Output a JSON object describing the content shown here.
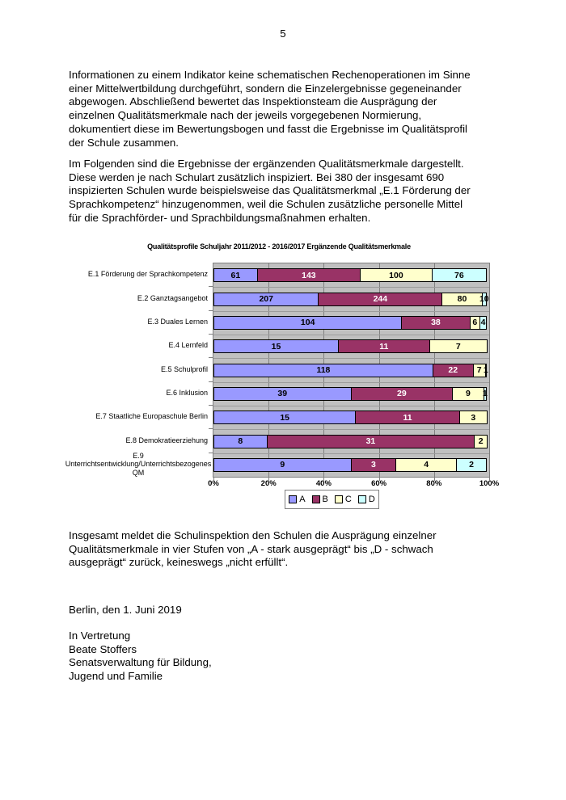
{
  "page": {
    "number": "5"
  },
  "paragraphs": {
    "p1": "Informationen zu einem Indikator keine schematischen Rechenoperationen im Sinne\neiner Mittelwertbildung durchgeführt, sondern die Einzelergebnisse gegeneinander\nabgewogen. Abschließend bewertet das Inspektionsteam die Ausprägung der\neinzelnen Qualitätsmerkmale nach der jeweils vorgegebenen Normierung,\ndokumentiert diese im Bewertungsbogen und fasst die Ergebnisse im Qualitätsprofil\nder Schule zusammen.",
    "p2": "Im Folgenden sind die Ergebnisse der ergänzenden Qualitätsmerkmale dargestellt.\nDiese werden je nach Schulart zusätzlich inspiziert. Bei 380 der insgesamt 690\ninspizierten Schulen wurde beispielsweise das Qualitätsmerkmal „E.1 Förderung der\nSprachkompetenz“ hinzugenommen, weil die Schulen zusätzliche personelle Mittel\nfür die Sprachförder- und Sprachbildungsmaßnahmen erhalten.",
    "p3": "Insgesamt meldet die Schulinspektion den Schulen die Ausprägung einzelner\nQualitätsmerkmale in vier Stufen von „A - stark ausgeprägt“ bis „D - schwach\nausgeprägt“ zurück, keineswegs „nicht erfüllt“.",
    "date_line": "Berlin, den 1. Juni 2019",
    "signature": "In Vertretung\nBeate Stoffers\nSenatsverwaltung für Bildung,\nJugend und Familie"
  },
  "chart_data": {
    "type": "bar",
    "stacked": true,
    "orientation": "horizontal",
    "percent_stacked": true,
    "title": "Qualitätsprofile Schuljahr 2011/2012 - 2016/2017 Ergänzende Qualitätsmerkmale",
    "categories": [
      "E.1 Förderung der Sprachkompetenz",
      "E.2 Ganztagsangebot",
      "E.3 Duales Lernen",
      "E.4 Lernfeld",
      "E.5 Schulprofil",
      "E.6 Inklusion",
      "E.7 Staatliche Europaschule Berlin",
      "E.8 Demokratieerziehung",
      "E.9\nUnterrichtsentwicklung/Unterrichtsbezogenes\nQM"
    ],
    "series": [
      {
        "name": "A",
        "color": "#9999FF",
        "text_color": "#000000",
        "values": [
          61,
          207,
          104,
          15,
          118,
          39,
          15,
          8,
          9
        ]
      },
      {
        "name": "B",
        "color": "#993366",
        "text_color": "#FFFFFF",
        "values": [
          143,
          244,
          38,
          11,
          22,
          29,
          11,
          31,
          3
        ]
      },
      {
        "name": "C",
        "color": "#FFFFCC",
        "text_color": "#000000",
        "values": [
          100,
          80,
          6,
          7,
          7,
          9,
          3,
          2,
          4
        ]
      },
      {
        "name": "D",
        "color": "#CCFFFF",
        "text_color": "#000000",
        "values": [
          76,
          10,
          4,
          0,
          1,
          1,
          0,
          0,
          2
        ]
      }
    ],
    "x_ticks": [
      "0%",
      "20%",
      "40%",
      "60%",
      "80%",
      "100%"
    ],
    "xlim": [
      0,
      100
    ],
    "xlabel": "",
    "ylabel": "",
    "plot_background": "#C0C0C0",
    "gridline_color": "#808080",
    "legend_position": "bottom",
    "legend_entries": [
      "A",
      "B",
      "C",
      "D"
    ]
  }
}
